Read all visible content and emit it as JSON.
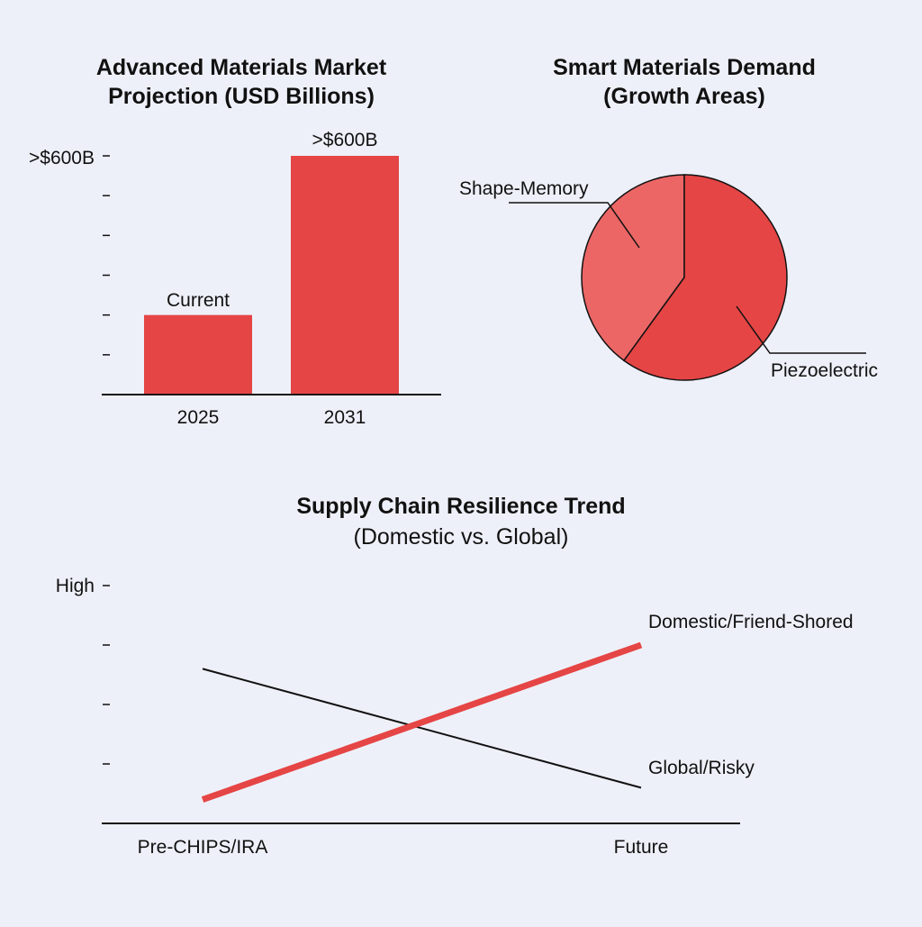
{
  "colors": {
    "accent": "#e54545",
    "accent_light": "#ec6666",
    "line_global": "#111111",
    "background": "#eef0f9"
  },
  "chart_data": [
    {
      "type": "bar",
      "title_line1": "Advanced Materials Market",
      "title_line2": "Projection (USD Billions)",
      "categories": [
        "2025",
        "2031"
      ],
      "values": [
        200,
        600
      ],
      "bar_labels": [
        "Current",
        ">$600B"
      ],
      "y_top_tick_label": ">$600B",
      "ylim": [
        0,
        600
      ],
      "tick_count": 6,
      "grid": false
    },
    {
      "type": "pie",
      "title_line1": "Smart Materials Demand",
      "title_line2": "(Growth Areas)",
      "slices": [
        {
          "label": "Shape-Memory",
          "value": 40,
          "color": "#ec6666"
        },
        {
          "label": "Piezoelectric",
          "value": 60,
          "color": "#e54545"
        }
      ]
    },
    {
      "type": "line",
      "title_line1": "Supply Chain Resilience Trend",
      "title_line2": "(Domestic vs. Global)",
      "x": [
        "Pre-CHIPS/IRA",
        "Future"
      ],
      "y_top_tick_label": "High",
      "ylim": [
        0,
        100
      ],
      "tick_count": 4,
      "series": [
        {
          "name": "Domestic/Friend-Shored",
          "values": [
            10,
            75
          ],
          "color": "#e54545"
        },
        {
          "name": "Global/Risky",
          "values": [
            65,
            15
          ],
          "color": "#111111"
        }
      ]
    }
  ]
}
